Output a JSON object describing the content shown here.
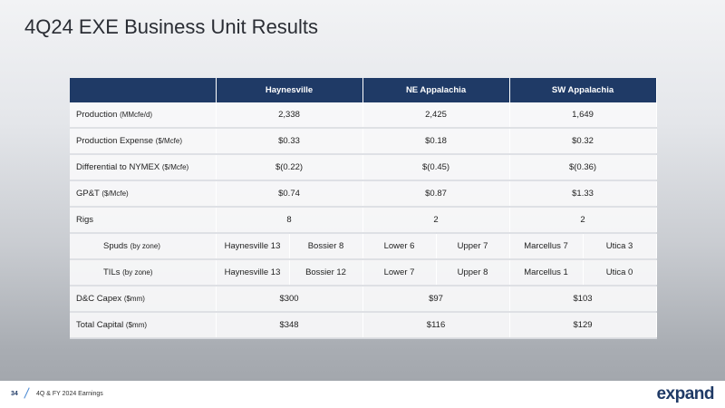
{
  "header": {
    "title": "4Q24 EXE Business Unit Results"
  },
  "table": {
    "columns": [
      "Haynesville",
      "NE Appalachia",
      "SW Appalachia"
    ],
    "rows": [
      {
        "label": "Production",
        "unit": "(MMcfe/d)",
        "cells": [
          "2,338",
          "2,425",
          "1,649"
        ]
      },
      {
        "label": "Production Expense",
        "unit": "($/Mcfe)",
        "cells": [
          "$0.33",
          "$0.18",
          "$0.32"
        ]
      },
      {
        "label": "Differential to NYMEX",
        "unit": "($/Mcfe)",
        "cells": [
          "$(0.22)",
          "$(0.45)",
          "$(0.36)"
        ]
      },
      {
        "label": "GP&T",
        "unit": "($/Mcfe)",
        "cells": [
          "$0.74",
          "$0.87",
          "$1.33"
        ]
      },
      {
        "label": "Rigs",
        "cells": [
          "8",
          "2",
          "2"
        ]
      },
      {
        "label": "Spuds",
        "unit": "(by zone)",
        "cells": [
          [
            "Haynesville 13",
            "Bossier 8"
          ],
          [
            "Lower 6",
            "Upper 7"
          ],
          [
            "Marcellus 7",
            "Utica 3"
          ]
        ]
      },
      {
        "label": "TILs",
        "unit": "(by zone)",
        "cells": [
          [
            "Haynesville 13",
            "Bossier 12"
          ],
          [
            "Lower 7",
            "Upper 8"
          ],
          [
            "Marcellus 1",
            "Utica 0"
          ]
        ]
      },
      {
        "label": "D&C Capex",
        "unit": "($mm)",
        "cells": [
          "$300",
          "$97",
          "$103"
        ]
      },
      {
        "label": "Total Capital",
        "unit": "($mm)",
        "cells": [
          "$348",
          "$116",
          "$129"
        ]
      }
    ]
  },
  "footer": {
    "page": "34",
    "text": "4Q & FY 2024 Earnings",
    "logo": "expand"
  }
}
